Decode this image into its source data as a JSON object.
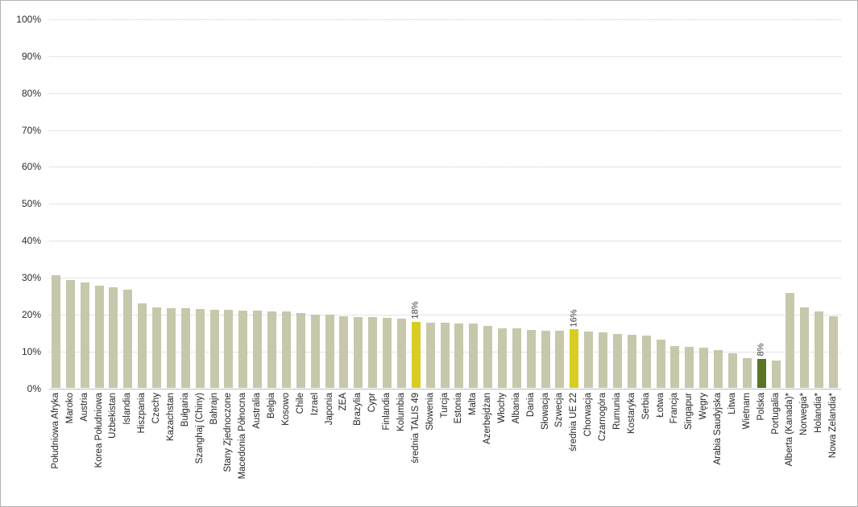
{
  "chart_data": {
    "type": "bar",
    "xlabel": "",
    "ylabel": "",
    "ylim": [
      0,
      100
    ],
    "grid": true,
    "y_tick_labels": [
      "0%",
      "10%",
      "20%",
      "30%",
      "40%",
      "50%",
      "60%",
      "70%",
      "80%",
      "90%",
      "100%"
    ],
    "categories": [
      "Południowa Afryka",
      "Maroko",
      "Austria",
      "Korea Południowa",
      "Uzbekistan",
      "Islandia",
      "Hiszpania",
      "Czechy",
      "Kazachstan",
      "Bułgaria",
      "Szanghaj (Chiny)",
      "Bahrajn",
      "Stany Zjednoczone",
      "Macedonia Północna",
      "Australia",
      "Belgia",
      "Kosowo",
      "Chile",
      "Izrael",
      "Japonia",
      "ZEA",
      "Brazylia",
      "Cypr",
      "Finlandia",
      "Kolumbia",
      "średnia TALIS 49",
      "Słowenia",
      "Turcja",
      "Estonia",
      "Malta",
      "Azerbejdżan",
      "Włochy",
      "Albania",
      "Dania",
      "Słowacja",
      "Szwecja",
      "średnia UE 22",
      "Chorwacja",
      "Czarnogóra",
      "Rumunia",
      "Kostaryka",
      "Serbia",
      "Łotwa",
      "Francja",
      "Singapur",
      "Węgry",
      "Arabia Saudyjska",
      "Litwa",
      "Wietnam",
      "Polska",
      "Portugalia",
      "Alberta (Kanada)*",
      "Norwegia*",
      "Holandia*",
      "Nowa Zelandia*"
    ],
    "values": [
      30.6,
      29.4,
      28.7,
      27.7,
      27.3,
      26.7,
      23.1,
      21.9,
      21.6,
      21.6,
      21.5,
      21.3,
      21.3,
      21.1,
      21.0,
      20.8,
      20.8,
      20.3,
      20.0,
      20.0,
      19.6,
      19.3,
      19.3,
      19.1,
      18.9,
      18.0,
      17.7,
      17.7,
      17.5,
      17.5,
      16.8,
      16.3,
      16.2,
      15.9,
      15.7,
      15.7,
      16.0,
      15.3,
      15.1,
      14.8,
      14.5,
      14.3,
      13.1,
      11.5,
      11.3,
      11.1,
      10.4,
      9.5,
      8.2,
      8.0,
      7.6,
      25.8,
      21.9,
      20.8,
      19.5
    ],
    "highlights": [
      {
        "index": 25,
        "style": "average",
        "data_label": "18%"
      },
      {
        "index": 36,
        "style": "average",
        "data_label": "16%"
      },
      {
        "index": 49,
        "style": "poland",
        "data_label": "8%"
      }
    ],
    "colors": {
      "bar_default": "#c7c7ab",
      "bar_average": "#d7cd23",
      "bar_poland": "#5a7428",
      "gridline": "#c7c7c7",
      "axis_line": "#bfbfbf",
      "tick_text": "#2b2b2b",
      "category_text": "#242424",
      "data_label_text": "#3d3d3d"
    },
    "legend": false
  }
}
